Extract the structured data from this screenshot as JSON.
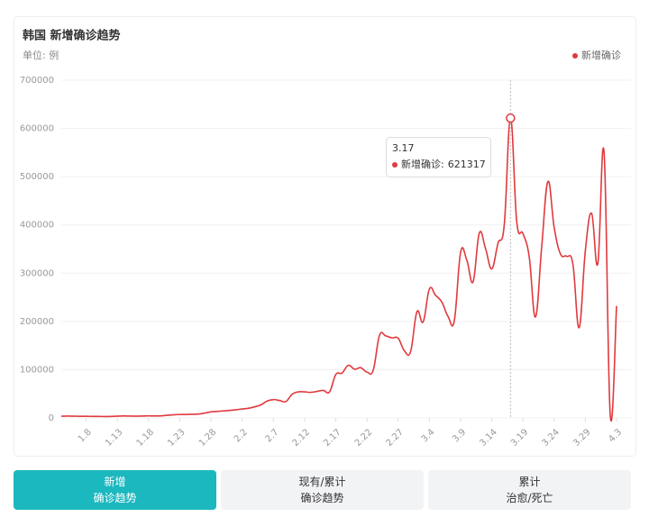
{
  "chart_data": {
    "type": "line",
    "title": "韩国 新增确诊趋势",
    "subtitle": "单位: 例",
    "categories": [
      null,
      null,
      null,
      null,
      "1.8",
      null,
      null,
      null,
      null,
      "1.13",
      null,
      null,
      null,
      null,
      "1.18",
      null,
      null,
      null,
      null,
      "1.23",
      null,
      null,
      null,
      null,
      "1.28",
      null,
      null,
      null,
      null,
      "2.2",
      null,
      null,
      null,
      null,
      "2.7",
      null,
      null,
      null,
      null,
      "2.12",
      null,
      null,
      null,
      null,
      "2.17",
      null,
      null,
      null,
      null,
      "2.22",
      null,
      null,
      null,
      null,
      "2.27",
      null,
      null,
      null,
      null,
      "3.4",
      null,
      null,
      null,
      null,
      "3.9",
      null,
      null,
      null,
      null,
      "3.14",
      null,
      null,
      null,
      null,
      "3.19",
      null,
      null,
      null,
      null,
      "3.24",
      null,
      null,
      null,
      null,
      "3.29",
      null,
      null,
      null,
      null,
      "4.3"
    ],
    "series": [
      {
        "name": "新增确诊",
        "color": "#e03a3e",
        "values": [
          3500,
          3800,
          3600,
          3400,
          3300,
          3200,
          3100,
          3000,
          3200,
          3600,
          4000,
          3800,
          3700,
          3900,
          4200,
          4000,
          4300,
          5500,
          6500,
          7000,
          7200,
          7500,
          8000,
          10000,
          12500,
          13500,
          14500,
          15500,
          17000,
          18500,
          20000,
          23000,
          27000,
          35000,
          38000,
          36000,
          34000,
          49000,
          54000,
          54000,
          53000,
          55000,
          57000,
          54000,
          90000,
          93000,
          109000,
          101000,
          104000,
          95000,
          99000,
          171000,
          170000,
          166000,
          165000,
          139000,
          138000,
          220000,
          199000,
          267000,
          254000,
          240000,
          210000,
          202000,
          343000,
          327000,
          282000,
          383000,
          351000,
          309000,
          362000,
          400000,
          621317,
          407000,
          382000,
          334000,
          209000,
          354000,
          490000,
          395000,
          340000,
          335000,
          319000,
          187000,
          347000,
          424000,
          320000,
          550000,
          4000,
          232000
        ]
      }
    ],
    "ylim": [
      0,
      700000
    ],
    "yticks": [
      0,
      100000,
      200000,
      300000,
      400000,
      500000,
      600000,
      700000
    ],
    "grid": true,
    "legend": "top-right",
    "tooltip": {
      "index": 72,
      "title": "3.17",
      "label": "新增确诊:",
      "value": 621317
    }
  },
  "tabs": [
    {
      "line1": "新增",
      "line2": "确诊趋势",
      "active": true
    },
    {
      "line1": "现有/累计",
      "line2": "确诊趋势",
      "active": false
    },
    {
      "line1": "累计",
      "line2": "治愈/死亡",
      "active": false
    }
  ]
}
